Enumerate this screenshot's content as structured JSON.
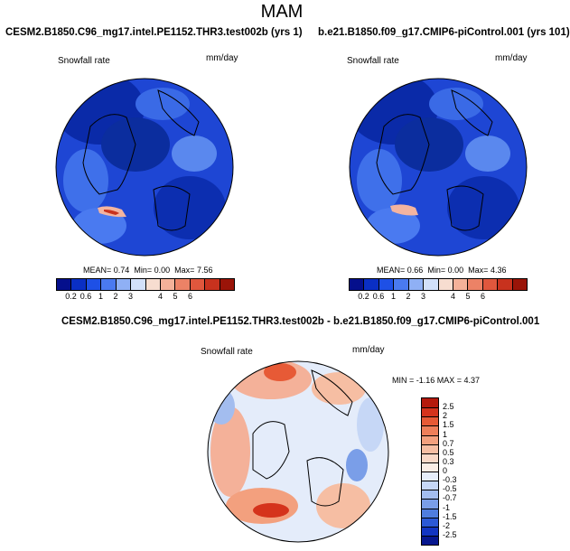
{
  "page": {
    "title": "MAM"
  },
  "panels": [
    {
      "title": "CESM2.B1850.C96_mg17.intel.PE1152.THR3.test002b (yrs 1)",
      "variable": "Snowfall rate",
      "units": "mm/day",
      "stats": {
        "mean_label": "MEAN=",
        "mean": "0.74",
        "min_label": "Min=",
        "min": "0.00",
        "max_label": "Max=",
        "max": "7.56"
      }
    },
    {
      "title": "b.e21.B1850.f09_g17.CMIP6-piControl.001 (yrs 101)",
      "variable": "Snowfall rate",
      "units": "mm/day",
      "stats": {
        "mean_label": "MEAN=",
        "mean": "0.66",
        "min_label": "Min=",
        "min": "0.00",
        "max_label": "Max=",
        "max": "4.36"
      }
    }
  ],
  "colorbar_levels": [
    "0.2",
    "0.6",
    "1",
    "2",
    "3",
    "4",
    "5",
    "6"
  ],
  "colorbar_colors": [
    "#050f8c",
    "#0a2fc4",
    "#1e50e6",
    "#4a7af0",
    "#8fb0f5",
    "#d2e0fa",
    "#f7ddd0",
    "#f4b199",
    "#ec8266",
    "#e0573d",
    "#c8321e",
    "#9a1408"
  ],
  "diff": {
    "title": "CESM2.B1850.C96_mg17.intel.PE1152.THR3.test002b - b.e21.B1850.f09_g17.CMIP6-piControl.001",
    "variable": "Snowfall rate",
    "units": "mm/day",
    "minmax": "MIN = -1.16 MAX =  4.37",
    "colorbar_labels": [
      "2.5",
      "2",
      "1.5",
      "1",
      "0.7",
      "0.5",
      "0.3",
      "0",
      "-0.3",
      "-0.5",
      "-0.7",
      "-1",
      "-1.5",
      "-2",
      "-2.5"
    ],
    "colorbar_colors": [
      "#b51a0c",
      "#d5331c",
      "#e75a36",
      "#ee7f5a",
      "#f3a07e",
      "#f6bea3",
      "#f9d8c7",
      "#fbeee6",
      "#e6eefb",
      "#c6d7f6",
      "#a3bdef",
      "#7a9ee8",
      "#4f7ddf",
      "#2b59d6",
      "#1235c2",
      "#07178f"
    ]
  },
  "colors": {
    "map_base": "#1a3fd0",
    "diff_base": "#e4ecfa"
  }
}
